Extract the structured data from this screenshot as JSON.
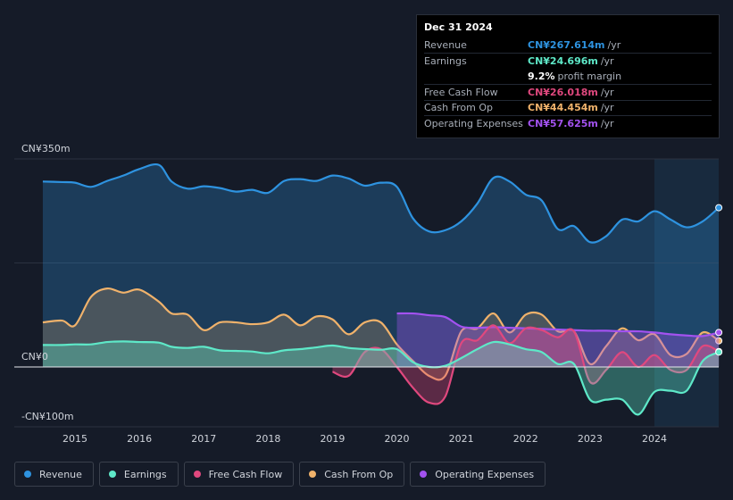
{
  "tooltip": {
    "date": "Dec 31 2024",
    "rows": [
      {
        "label": "Revenue",
        "value": "CN¥267.614m",
        "unit": "/yr",
        "color": "#2e93e0"
      },
      {
        "label": "Earnings",
        "value": "CN¥24.696m",
        "unit": "/yr",
        "color": "#5ee8c8"
      },
      {
        "label": "",
        "value": "9.2%",
        "unit": "profit margin",
        "color": "#ffffff"
      },
      {
        "label": "Free Cash Flow",
        "value": "CN¥26.018m",
        "unit": "/yr",
        "color": "#e0487e"
      },
      {
        "label": "Cash From Op",
        "value": "CN¥44.454m",
        "unit": "/yr",
        "color": "#f0b26b"
      },
      {
        "label": "Operating Expenses",
        "value": "CN¥57.625m",
        "unit": "/yr",
        "color": "#a352f0"
      }
    ]
  },
  "legend": [
    {
      "label": "Revenue",
      "color": "#2e93e0"
    },
    {
      "label": "Earnings",
      "color": "#5ee8c8"
    },
    {
      "label": "Free Cash Flow",
      "color": "#e0487e"
    },
    {
      "label": "Cash From Op",
      "color": "#f0b26b"
    },
    {
      "label": "Operating Expenses",
      "color": "#a352f0"
    }
  ],
  "chart_data": {
    "type": "area",
    "title": "",
    "xlabel": "",
    "ylabel": "",
    "ylim": [
      -100,
      350
    ],
    "xlim": [
      2014.5,
      2025.0
    ],
    "forecast_start": 2024.0,
    "y_tick_labels": [
      {
        "value": 350,
        "label": "CN¥350m"
      },
      {
        "value": 0,
        "label": "CN¥0"
      },
      {
        "value": -100,
        "label": "-CN¥100m"
      }
    ],
    "x_ticks": [
      2015,
      2016,
      2017,
      2018,
      2019,
      2020,
      2021,
      2022,
      2023,
      2024
    ],
    "series": [
      {
        "name": "Revenue",
        "color": "#2e93e0",
        "fill": true,
        "x": [
          2014.5,
          2014.8,
          2015.0,
          2015.25,
          2015.5,
          2015.75,
          2016.0,
          2016.3,
          2016.5,
          2016.75,
          2017.0,
          2017.25,
          2017.5,
          2017.75,
          2018.0,
          2018.25,
          2018.5,
          2018.75,
          2019.0,
          2019.25,
          2019.5,
          2019.75,
          2020.0,
          2020.25,
          2020.5,
          2020.75,
          2021.0,
          2021.25,
          2021.5,
          2021.75,
          2022.0,
          2022.25,
          2022.5,
          2022.75,
          2023.0,
          2023.25,
          2023.5,
          2023.75,
          2024.0,
          2024.25,
          2024.5,
          2024.75,
          2025.0
        ],
        "values": [
          312,
          311,
          310,
          303,
          313,
          322,
          333,
          340,
          312,
          300,
          304,
          301,
          295,
          298,
          293,
          313,
          316,
          313,
          322,
          317,
          305,
          310,
          303,
          250,
          228,
          230,
          245,
          275,
          318,
          312,
          290,
          280,
          232,
          237,
          210,
          220,
          248,
          245,
          262,
          248,
          235,
          245,
          268
        ]
      },
      {
        "name": "Earnings",
        "color": "#5ee8c8",
        "fill": true,
        "x": [
          2014.5,
          2014.8,
          2015.0,
          2015.25,
          2015.5,
          2015.75,
          2016.0,
          2016.3,
          2016.5,
          2016.75,
          2017.0,
          2017.25,
          2017.5,
          2017.75,
          2018.0,
          2018.25,
          2018.5,
          2018.75,
          2019.0,
          2019.25,
          2019.5,
          2019.75,
          2020.0,
          2020.25,
          2020.5,
          2020.75,
          2021.0,
          2021.25,
          2021.5,
          2021.75,
          2022.0,
          2022.25,
          2022.5,
          2022.75,
          2023.0,
          2023.25,
          2023.5,
          2023.75,
          2024.0,
          2024.25,
          2024.5,
          2024.75,
          2025.0
        ],
        "values": [
          37,
          37,
          38,
          38,
          42,
          43,
          42,
          41,
          34,
          32,
          34,
          28,
          27,
          26,
          23,
          28,
          30,
          33,
          36,
          32,
          30,
          29,
          30,
          8,
          0,
          2,
          15,
          30,
          42,
          38,
          30,
          25,
          5,
          5,
          -55,
          -55,
          -55,
          -80,
          -42,
          -40,
          -40,
          10,
          25
        ]
      },
      {
        "name": "Free Cash Flow",
        "color": "#e0487e",
        "fill": true,
        "x": [
          2019.0,
          2019.25,
          2019.5,
          2019.75,
          2020.0,
          2020.25,
          2020.5,
          2020.75,
          2021.0,
          2021.25,
          2021.5,
          2021.75,
          2022.0,
          2022.25,
          2022.5,
          2022.75,
          2023.0,
          2023.25,
          2023.5,
          2023.75,
          2024.0,
          2024.25,
          2024.5,
          2024.75,
          2025.0
        ],
        "values": [
          -8,
          -15,
          25,
          30,
          0,
          -35,
          -60,
          -50,
          40,
          45,
          70,
          40,
          65,
          62,
          50,
          60,
          -25,
          -5,
          25,
          0,
          20,
          -5,
          -5,
          35,
          26
        ]
      },
      {
        "name": "Cash From Op",
        "color": "#f0b26b",
        "fill": true,
        "x": [
          2014.5,
          2014.8,
          2015.0,
          2015.25,
          2015.5,
          2015.75,
          2016.0,
          2016.3,
          2016.5,
          2016.75,
          2017.0,
          2017.25,
          2017.5,
          2017.75,
          2018.0,
          2018.25,
          2018.5,
          2018.75,
          2019.0,
          2019.25,
          2019.5,
          2019.75,
          2020.0,
          2020.25,
          2020.5,
          2020.75,
          2021.0,
          2021.25,
          2021.5,
          2021.75,
          2022.0,
          2022.25,
          2022.5,
          2022.75,
          2023.0,
          2023.25,
          2023.5,
          2023.75,
          2024.0,
          2024.25,
          2024.5,
          2024.75,
          2025.0
        ],
        "values": [
          75,
          78,
          70,
          118,
          132,
          125,
          130,
          110,
          90,
          88,
          62,
          75,
          75,
          72,
          75,
          88,
          70,
          85,
          80,
          55,
          75,
          75,
          38,
          10,
          -15,
          -15,
          60,
          65,
          90,
          58,
          88,
          88,
          60,
          60,
          5,
          35,
          65,
          45,
          55,
          20,
          22,
          58,
          44
        ]
      },
      {
        "name": "Operating Expenses",
        "color": "#a352f0",
        "fill": true,
        "x": [
          2020.0,
          2020.25,
          2020.5,
          2020.75,
          2021.0,
          2021.25,
          2021.5,
          2021.75,
          2022.0,
          2022.25,
          2022.5,
          2022.75,
          2023.0,
          2023.25,
          2023.5,
          2023.75,
          2024.0,
          2024.25,
          2024.5,
          2024.75,
          2025.0
        ],
        "values": [
          90,
          90,
          87,
          84,
          68,
          66,
          67,
          66,
          65,
          64,
          63,
          62,
          61,
          61,
          60,
          60,
          58,
          55,
          53,
          52,
          58
        ]
      }
    ]
  }
}
